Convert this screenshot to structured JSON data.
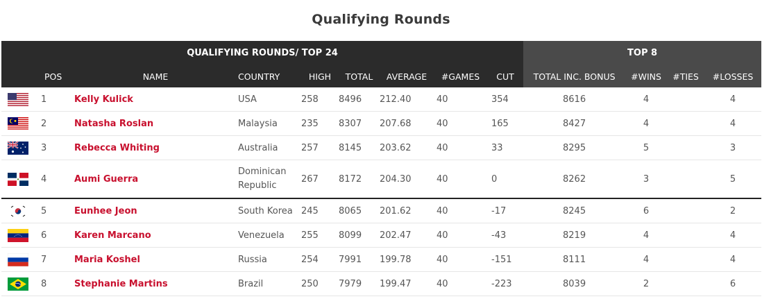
{
  "title": "Qualifying Rounds",
  "groups": {
    "qualifying": "QUALIFYING ROUNDS/ TOP 24",
    "top8": "TOP 8"
  },
  "columns": {
    "pos": "POS",
    "name": "NAME",
    "country": "COUNTRY",
    "high": "HIGH",
    "total": "TOTAL",
    "average": "AVERAGE",
    "games": "#GAMES",
    "cut": "CUT",
    "total_bonus": "TOTAL INC. BONUS",
    "wins": "#WINS",
    "ties": "#TIES",
    "losses": "#LOSSES"
  },
  "rows": [
    {
      "flag": "usa-flag-icon",
      "pos": "1",
      "name": "Kelly Kulick",
      "country": "USA",
      "country2": "",
      "high": "258",
      "total": "8496",
      "average": "212.40",
      "games": "40",
      "cut": "354",
      "total_bonus": "8616",
      "wins": "4",
      "ties": "",
      "losses": "4"
    },
    {
      "flag": "malaysia-flag-icon",
      "pos": "2",
      "name": "Natasha Roslan",
      "country": "Malaysia",
      "country2": "",
      "high": "235",
      "total": "8307",
      "average": "207.68",
      "games": "40",
      "cut": "165",
      "total_bonus": "8427",
      "wins": "4",
      "ties": "",
      "losses": "4"
    },
    {
      "flag": "australia-flag-icon",
      "pos": "3",
      "name": "Rebecca Whiting",
      "country": "Australia",
      "country2": "",
      "high": "257",
      "total": "8145",
      "average": "203.62",
      "games": "40",
      "cut": "33",
      "total_bonus": "8295",
      "wins": "5",
      "ties": "",
      "losses": "3"
    },
    {
      "flag": "dominican-republic-flag-icon",
      "pos": "4",
      "name": "Aumi Guerra",
      "country": "Dominican",
      "country2": "Republic",
      "high": "267",
      "total": "8172",
      "average": "204.30",
      "games": "40",
      "cut": "0",
      "total_bonus": "8262",
      "wins": "3",
      "ties": "",
      "losses": "5"
    },
    {
      "flag": "south-korea-flag-icon",
      "pos": "5",
      "name": "Eunhee Jeon",
      "country": "South Korea",
      "country2": "",
      "high": "245",
      "total": "8065",
      "average": "201.62",
      "games": "40",
      "cut": "-17",
      "total_bonus": "8245",
      "wins": "6",
      "ties": "",
      "losses": "2"
    },
    {
      "flag": "venezuela-flag-icon",
      "pos": "6",
      "name": "Karen Marcano",
      "country": "Venezuela",
      "country2": "",
      "high": "255",
      "total": "8099",
      "average": "202.47",
      "games": "40",
      "cut": "-43",
      "total_bonus": "8219",
      "wins": "4",
      "ties": "",
      "losses": "4"
    },
    {
      "flag": "russia-flag-icon",
      "pos": "7",
      "name": "Maria Koshel",
      "country": "Russia",
      "country2": "",
      "high": "254",
      "total": "7991",
      "average": "199.78",
      "games": "40",
      "cut": "-151",
      "total_bonus": "8111",
      "wins": "4",
      "ties": "",
      "losses": "4"
    },
    {
      "flag": "brazil-flag-icon",
      "pos": "8",
      "name": "Stephanie Martins",
      "country": "Brazil",
      "country2": "",
      "high": "250",
      "total": "7979",
      "average": "199.47",
      "games": "40",
      "cut": "-223",
      "total_bonus": "8039",
      "wins": "2",
      "ties": "",
      "losses": "6"
    }
  ]
}
